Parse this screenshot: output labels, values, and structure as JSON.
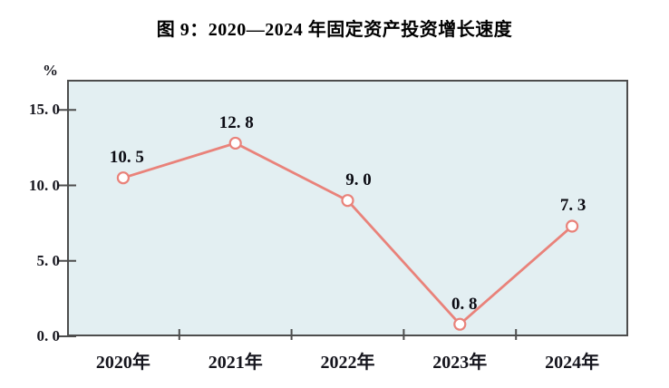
{
  "chart_data": {
    "type": "line",
    "title": "图 9：2020—2024 年固定资产投资增长速度",
    "xlabel": "",
    "ylabel": "%",
    "categories": [
      "2020年",
      "2021年",
      "2022年",
      "2023年",
      "2024年"
    ],
    "values": [
      10.5,
      12.8,
      9.0,
      0.8,
      7.3
    ],
    "point_labels": [
      "10. 5",
      "12. 8",
      "9. 0",
      "0. 8",
      "7. 3"
    ],
    "ylim": [
      0,
      17
    ],
    "yticks": [
      15,
      10,
      5,
      0
    ],
    "ytick_labels": [
      "15. 0",
      "10. 0",
      "5. 0",
      "0. 0"
    ],
    "grid": false,
    "legend": "none",
    "colors": {
      "plot_bg": "#e3eff2",
      "line": "#e9827a",
      "marker_fill": "#ffffff",
      "axis": "#4d4d4d",
      "text": "#15151d"
    }
  }
}
